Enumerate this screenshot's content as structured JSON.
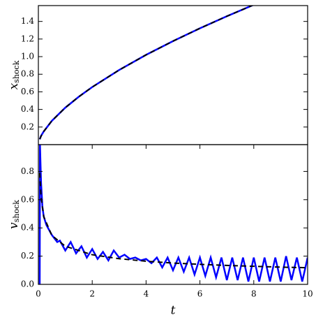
{
  "chart_data": [
    {
      "type": "line",
      "ylabel": "x",
      "ylabel_sub": "shock",
      "xlim": [
        0,
        10
      ],
      "ylim": [
        0,
        1.58
      ],
      "yticks": [
        0.2,
        0.4,
        0.6,
        0.8,
        {
          "value": 1,
          "label": "1.0"
        },
        1.2,
        1.4
      ],
      "series": [
        {
          "color": "#0000ff",
          "dash": false,
          "x": [
            0.05,
            0.1,
            0.2,
            0.5,
            1,
            1.5,
            2,
            3,
            4,
            5,
            6,
            7,
            8
          ],
          "values": [
            0.06,
            0.1,
            0.15,
            0.27,
            0.42,
            0.544,
            0.654,
            0.848,
            1.02,
            1.176,
            1.322,
            1.459,
            1.589
          ]
        },
        {
          "color": "#000000",
          "dash": true,
          "x": [
            0.05,
            0.1,
            0.2,
            0.5,
            1,
            1.5,
            2,
            3,
            4,
            5,
            6,
            7,
            8
          ],
          "values": [
            0.062,
            0.096,
            0.15,
            0.27,
            0.42,
            0.544,
            0.654,
            0.848,
            1.02,
            1.176,
            1.322,
            1.459,
            1.589
          ]
        }
      ]
    },
    {
      "type": "line",
      "ylabel": "v",
      "ylabel_sub": "shock",
      "xlabel": "t",
      "xlim": [
        0,
        10
      ],
      "ylim": [
        0,
        0.99
      ],
      "xticks": [
        0,
        2,
        4,
        6,
        8,
        10
      ],
      "yticks": [
        {
          "value": 0,
          "label": "0.0"
        },
        0.2,
        0.4,
        0.6,
        0.8
      ],
      "series": [
        {
          "color": "#0000ff",
          "dash": false,
          "x": [
            0.05,
            0.06,
            0.08,
            0.1,
            0.15,
            0.2,
            0.3,
            0.5,
            0.7,
            0.8,
            1.0,
            1.2,
            1.4,
            1.6,
            1.8,
            2.0,
            2.2,
            2.4,
            2.6,
            2.8,
            3.0,
            3.2,
            3.4,
            3.6,
            3.8,
            4.0,
            4.2,
            4.4,
            4.6,
            4.8,
            5.0,
            5.2,
            5.4,
            5.6,
            5.8,
            6.0,
            6.2,
            6.4,
            6.6,
            6.8,
            7.0,
            7.2,
            7.4,
            7.6,
            7.8,
            8.0,
            8.2,
            8.4,
            8.6,
            8.8,
            9.0,
            9.2,
            9.4,
            9.6,
            9.8,
            10.0
          ],
          "values": [
            0,
            0.99,
            0.85,
            0.72,
            0.55,
            0.48,
            0.42,
            0.35,
            0.3,
            0.31,
            0.24,
            0.3,
            0.22,
            0.27,
            0.19,
            0.25,
            0.18,
            0.23,
            0.17,
            0.24,
            0.19,
            0.21,
            0.18,
            0.19,
            0.17,
            0.18,
            0.15,
            0.19,
            0.12,
            0.19,
            0.1,
            0.19,
            0.09,
            0.19,
            0.07,
            0.19,
            0.06,
            0.19,
            0.05,
            0.19,
            0.03,
            0.19,
            0.03,
            0.19,
            0.02,
            0.19,
            0.02,
            0.19,
            0.02,
            0.19,
            0.02,
            0.2,
            0.03,
            0.19,
            0.02,
            0.19
          ]
        },
        {
          "color": "#000000",
          "dash": true,
          "x": [
            0.05,
            0.1,
            0.2,
            0.5,
            1,
            2,
            3,
            4,
            5,
            6,
            7,
            8,
            9,
            10
          ],
          "values": [
            0.79,
            0.62,
            0.48,
            0.347,
            0.27,
            0.21,
            0.182,
            0.164,
            0.151,
            0.142,
            0.134,
            0.128,
            0.122,
            0.118
          ]
        }
      ]
    }
  ]
}
